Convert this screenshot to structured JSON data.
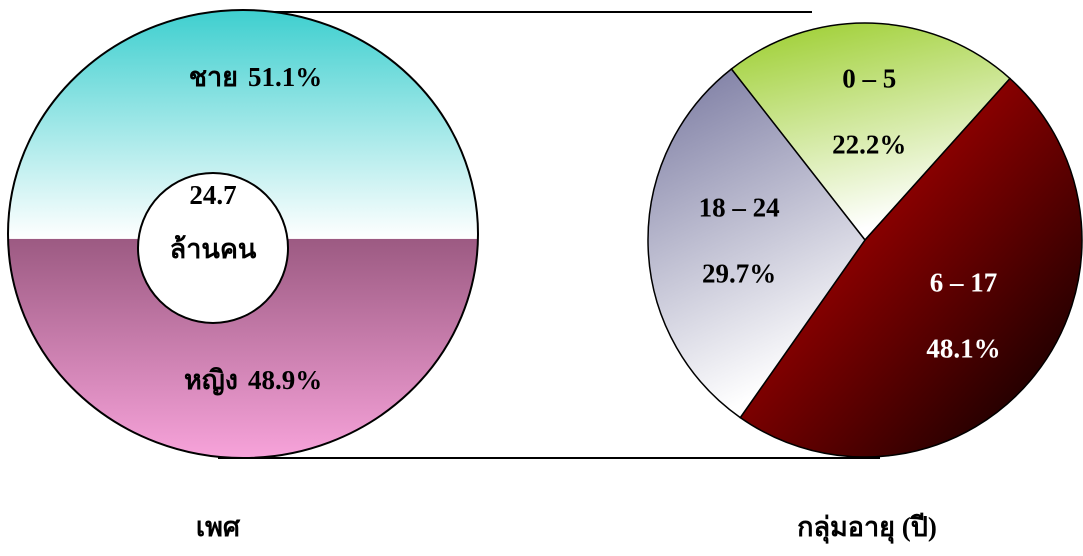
{
  "chart_data": [
    {
      "type": "donut",
      "title": "เพศ",
      "categories": [
        "ชาย",
        "หญิง"
      ],
      "values": [
        51.1,
        48.9
      ],
      "value_labels": [
        "51.1%",
        "48.9%"
      ],
      "colors": [
        "#3ecfcf",
        "#9c5a82"
      ],
      "center_value": 24.7,
      "center_label": "ล้านคน"
    },
    {
      "type": "pie",
      "title": "กลุ่มอายุ (ปี)",
      "categories": [
        "0 – 5",
        "6 – 17",
        "18 – 24"
      ],
      "values": [
        22.2,
        48.1,
        29.7
      ],
      "value_labels": [
        "22.2%",
        "48.1%",
        "29.7%"
      ],
      "colors": [
        "#9acd2a",
        "#e00000",
        "#77779f"
      ],
      "label_colors": [
        "#000000",
        "#ffffff",
        "#000000"
      ]
    }
  ]
}
